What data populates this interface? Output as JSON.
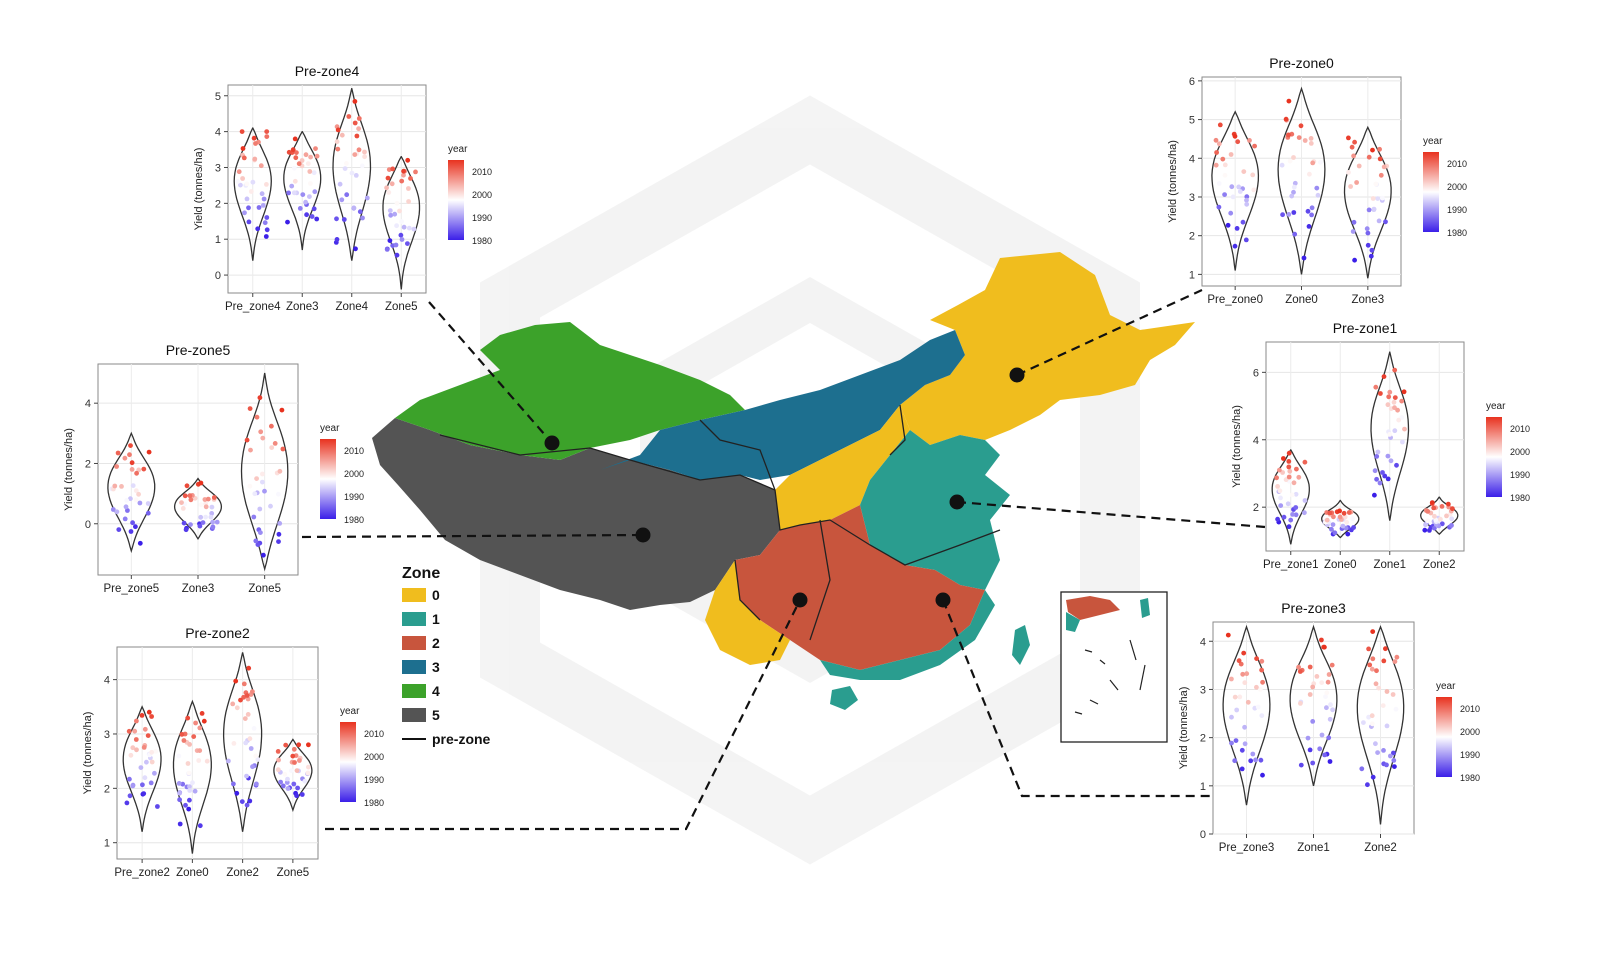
{
  "colors": {
    "zone0": "#f0bd1e",
    "zone1": "#2a9d8f",
    "zone2": "#c8553d",
    "zone3": "#1d6f8f",
    "zone4": "#3ca22a",
    "zone5": "#545454",
    "gradient_low": "#3b1fe8",
    "gradient_mid": "#ffffff",
    "gradient_high": "#e8321f"
  },
  "legend": {
    "title": "Zone",
    "items": [
      {
        "label": "0",
        "color_key": "zone0"
      },
      {
        "label": "1",
        "color_key": "zone1"
      },
      {
        "label": "2",
        "color_key": "zone2"
      },
      {
        "label": "3",
        "color_key": "zone3"
      },
      {
        "label": "4",
        "color_key": "zone4"
      },
      {
        "label": "5",
        "color_key": "zone5"
      }
    ],
    "line_label": "pre-zone"
  },
  "chart_data": [
    {
      "type": "violin",
      "title": "Pre-zone4",
      "ylabel": "Yield (tonnes/ha)",
      "ylim": [
        -0.5,
        5.3
      ],
      "yticks": [
        0,
        1,
        2,
        3,
        4,
        5
      ],
      "categories": [
        "Pre_zone4",
        "Zone3",
        "Zone4",
        "Zone5"
      ],
      "medians": [
        2.6,
        2.7,
        2.9,
        1.9
      ],
      "ranges": [
        [
          0.4,
          4.1
        ],
        [
          0.7,
          4.0
        ],
        [
          0.4,
          5.2
        ],
        [
          -0.4,
          3.3
        ]
      ],
      "color_legend": {
        "title": "year",
        "ticks": [
          "2010",
          "2000",
          "1990",
          "1980"
        ]
      }
    },
    {
      "type": "violin",
      "title": "Pre-zone5",
      "ylabel": "Yield (tonnes/ha)",
      "ylim": [
        -1.7,
        5.3
      ],
      "yticks": [
        0,
        2,
        4
      ],
      "categories": [
        "Pre_zone5",
        "Zone3",
        "Zone5"
      ],
      "medians": [
        1.1,
        0.5,
        1.4
      ],
      "ranges": [
        [
          -0.9,
          3.0
        ],
        [
          -0.5,
          1.5
        ],
        [
          -1.5,
          5.0
        ]
      ],
      "color_legend": {
        "title": "year",
        "ticks": [
          "2010",
          "2000",
          "1990",
          "1980"
        ]
      }
    },
    {
      "type": "violin",
      "title": "Pre-zone2",
      "ylabel": "Yield (tonnes/ha)",
      "ylim": [
        0.7,
        4.6
      ],
      "yticks": [
        1,
        2,
        3,
        4
      ],
      "categories": [
        "Pre_zone2",
        "Zone0",
        "Zone2",
        "Zone5"
      ],
      "medians": [
        2.5,
        2.4,
        2.9,
        2.3
      ],
      "ranges": [
        [
          1.2,
          3.5
        ],
        [
          0.8,
          3.6
        ],
        [
          1.2,
          4.5
        ],
        [
          1.6,
          2.9
        ]
      ],
      "color_legend": {
        "title": "year",
        "ticks": [
          "2010",
          "2000",
          "1990",
          "1980"
        ]
      }
    },
    {
      "type": "violin",
      "title": "Pre-zone0",
      "ylabel": "Yield (tonnes/ha)",
      "ylim": [
        0.7,
        6.1
      ],
      "yticks": [
        1,
        2,
        3,
        4,
        5,
        6
      ],
      "categories": [
        "Pre_zone0",
        "Zone0",
        "Zone3"
      ],
      "medians": [
        3.5,
        3.6,
        3.1
      ],
      "ranges": [
        [
          1.1,
          5.2
        ],
        [
          1.0,
          5.8
        ],
        [
          0.9,
          4.8
        ]
      ],
      "color_legend": {
        "title": "year",
        "ticks": [
          "2010",
          "2000",
          "1990",
          "1980"
        ]
      }
    },
    {
      "type": "violin",
      "title": "Pre-zone1",
      "ylabel": "Yield (tonnes/ha)",
      "ylim": [
        0.7,
        6.9
      ],
      "yticks": [
        2,
        4,
        6
      ],
      "categories": [
        "Pre_zone1",
        "Zone0",
        "Zone1",
        "Zone2"
      ],
      "medians": [
        2.5,
        1.6,
        4.2,
        1.7
      ],
      "ranges": [
        [
          0.9,
          3.7
        ],
        [
          1.1,
          2.2
        ],
        [
          1.6,
          6.6
        ],
        [
          1.2,
          2.3
        ]
      ],
      "color_legend": {
        "title": "year",
        "ticks": [
          "2010",
          "2000",
          "1990",
          "1980"
        ]
      }
    },
    {
      "type": "violin",
      "title": "Pre-zone3",
      "ylabel": "Yield (tonnes/ha)",
      "ylim": [
        0,
        4.4
      ],
      "yticks": [
        0,
        1,
        2,
        3,
        4
      ],
      "categories": [
        "Pre_zone3",
        "Zone1",
        "Zone2"
      ],
      "medians": [
        2.6,
        2.7,
        2.6
      ],
      "ranges": [
        [
          0.6,
          4.3
        ],
        [
          1.0,
          4.3
        ],
        [
          0.2,
          4.3
        ]
      ],
      "color_legend": {
        "title": "year",
        "ticks": [
          "2010",
          "2000",
          "1990",
          "1980"
        ]
      }
    }
  ]
}
